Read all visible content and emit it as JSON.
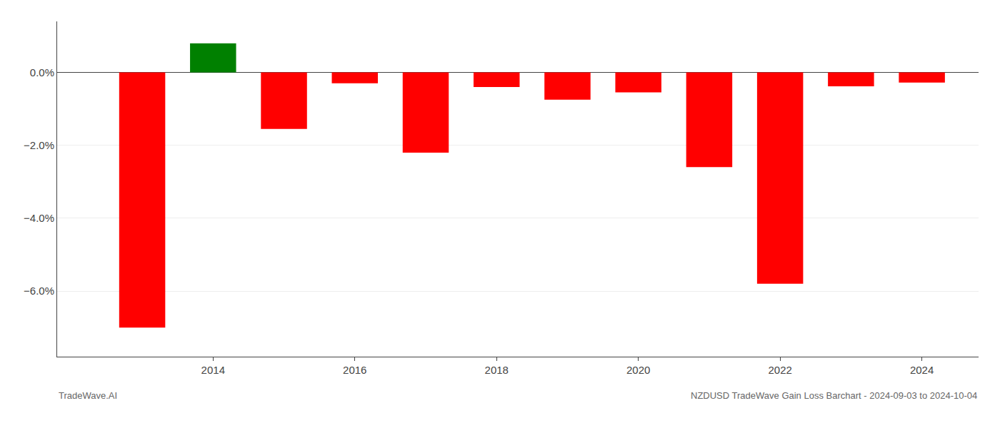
{
  "chart_data": {
    "type": "bar",
    "x": [
      2013,
      2014,
      2015,
      2016,
      2017,
      2018,
      2019,
      2020,
      2021,
      2022,
      2023,
      2024
    ],
    "values": [
      -7.0,
      0.8,
      -1.55,
      -0.3,
      -2.2,
      -0.4,
      -0.75,
      -0.55,
      -2.6,
      -5.8,
      -0.38,
      -0.28
    ],
    "colors": [
      "#ff0000",
      "#008000",
      "#ff0000",
      "#ff0000",
      "#ff0000",
      "#ff0000",
      "#ff0000",
      "#ff0000",
      "#ff0000",
      "#ff0000",
      "#ff0000",
      "#ff0000"
    ],
    "xlim": [
      2011.8,
      2024.8
    ],
    "xticks": [
      2014,
      2016,
      2018,
      2020,
      2022,
      2024
    ],
    "ylim": [
      -7.8,
      1.4
    ],
    "yticks": [
      {
        "value": 0.0,
        "label": "0.0%"
      },
      {
        "value": -2.0,
        "label": "−2.0%"
      },
      {
        "value": -4.0,
        "label": "−4.0%"
      },
      {
        "value": -6.0,
        "label": "−6.0%"
      }
    ],
    "grid": true,
    "annotations": [
      "TradeWave.AI",
      "NZDUSD TradeWave Gain Loss Barchart - 2024-09-03 to 2024-10-04"
    ]
  }
}
